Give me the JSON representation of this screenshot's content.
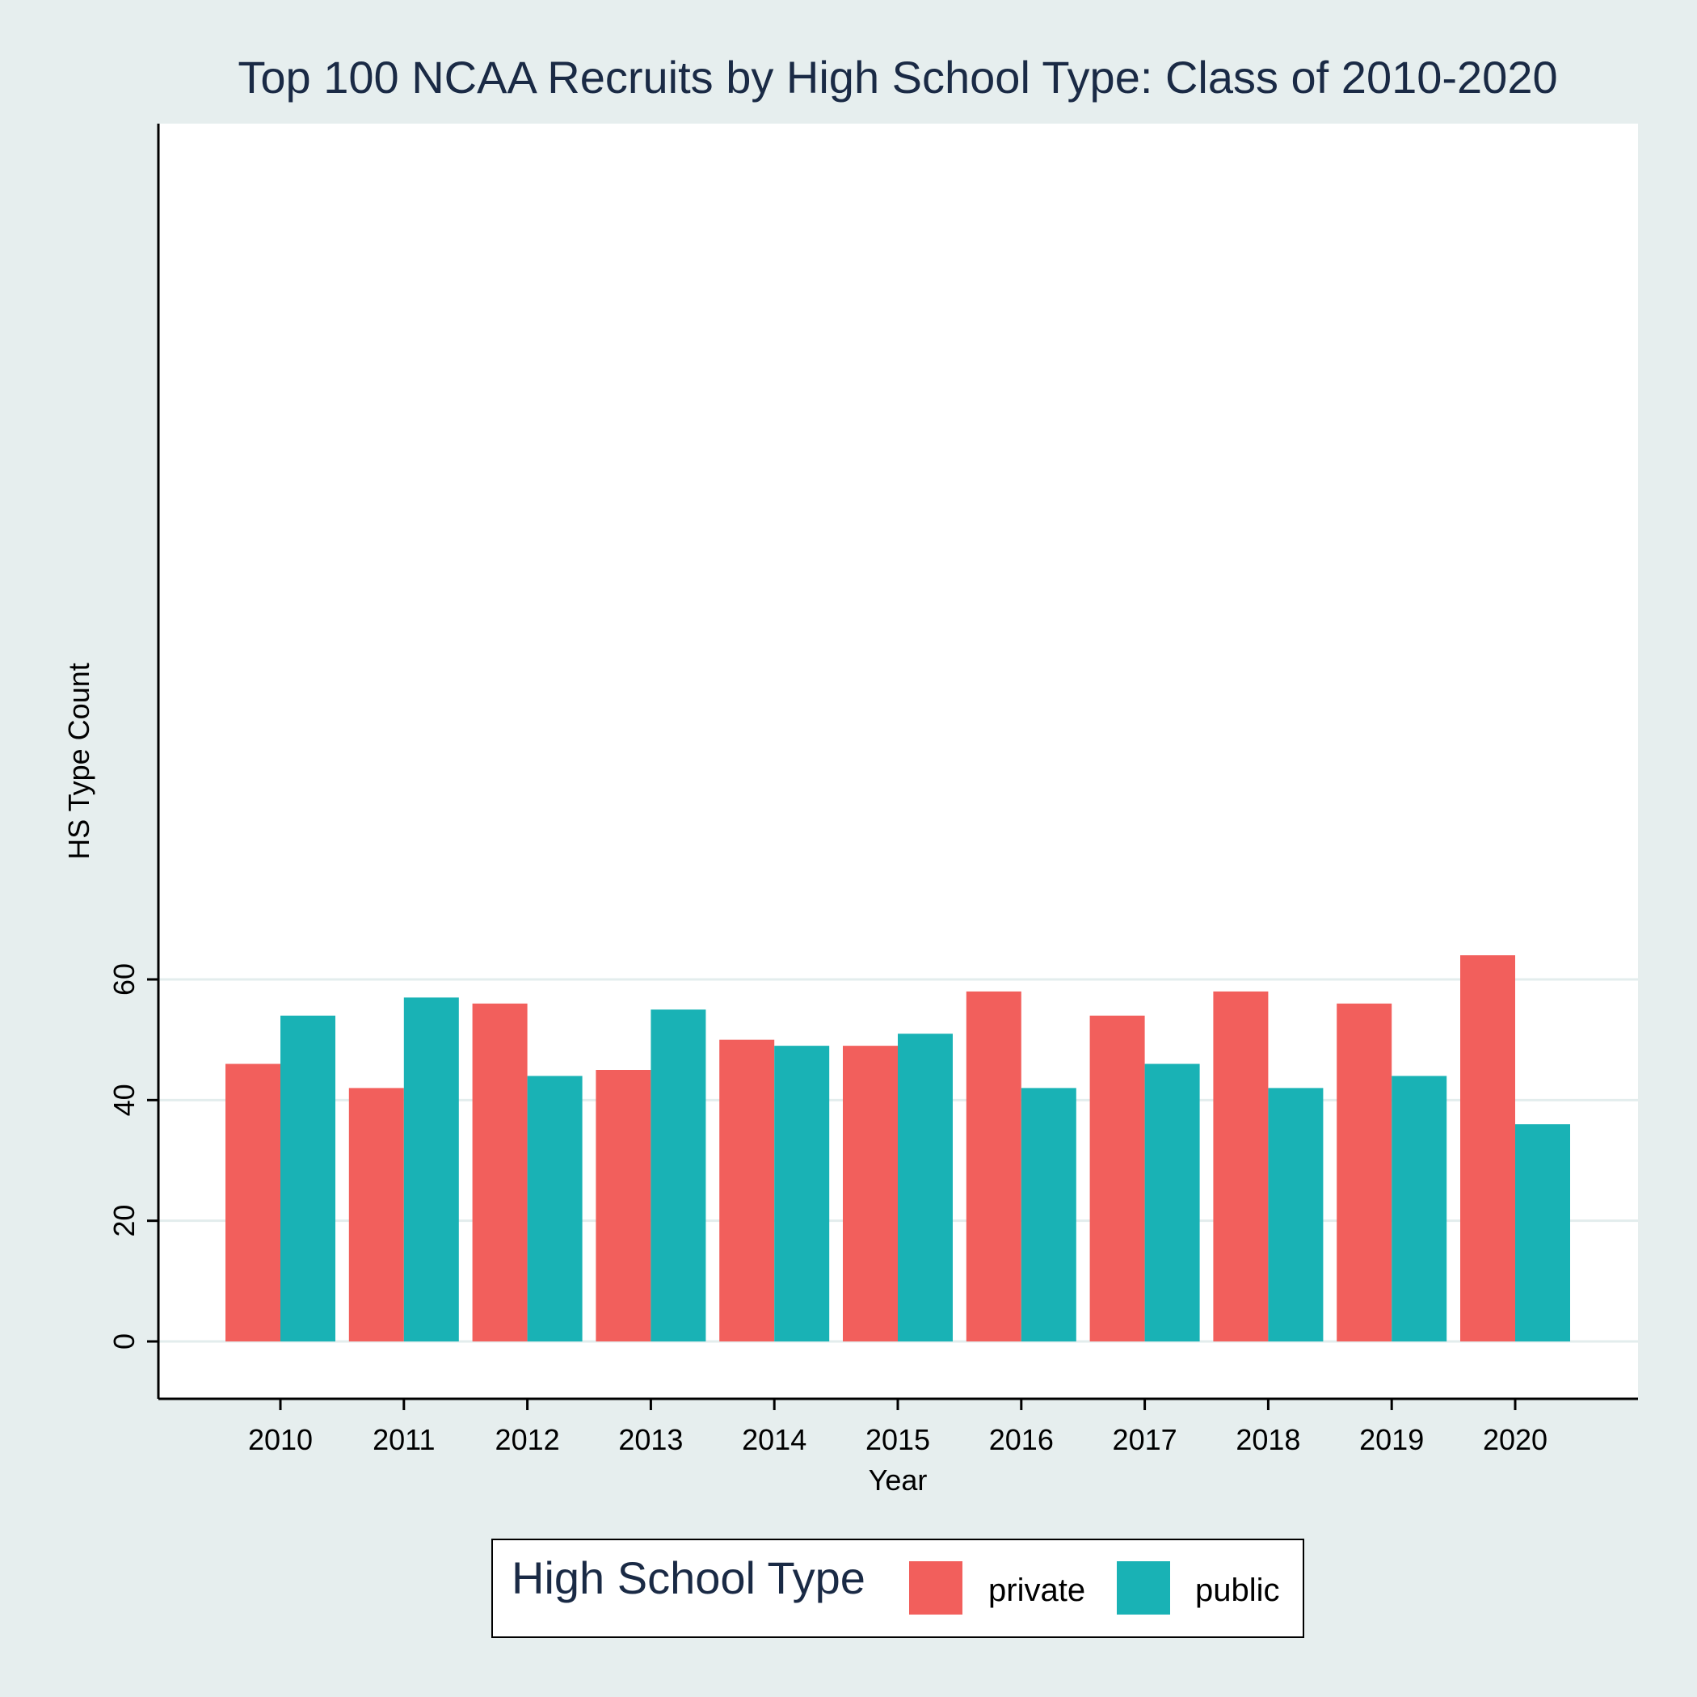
{
  "chart_data": {
    "type": "bar",
    "title": "Top 100 NCAA Recruits by High School Type: Class of 2010-2020",
    "xlabel": "Year",
    "ylabel": "HS Type Count",
    "categories": [
      "2010",
      "2011",
      "2012",
      "2013",
      "2014",
      "2015",
      "2016",
      "2017",
      "2018",
      "2019",
      "2020"
    ],
    "series": [
      {
        "name": "private",
        "color": "#f25f5c",
        "values": [
          46,
          42,
          56,
          45,
          50,
          49,
          58,
          54,
          58,
          56,
          64
        ]
      },
      {
        "name": "public",
        "color": "#19b2b5",
        "values": [
          54,
          57,
          44,
          55,
          49,
          51,
          42,
          46,
          42,
          44,
          36
        ]
      }
    ],
    "ylim": [
      -3,
      67
    ],
    "yticks": [
      0,
      20,
      40,
      60
    ],
    "grid": true,
    "legend": {
      "title": "High School Type",
      "position": "bottom"
    }
  }
}
